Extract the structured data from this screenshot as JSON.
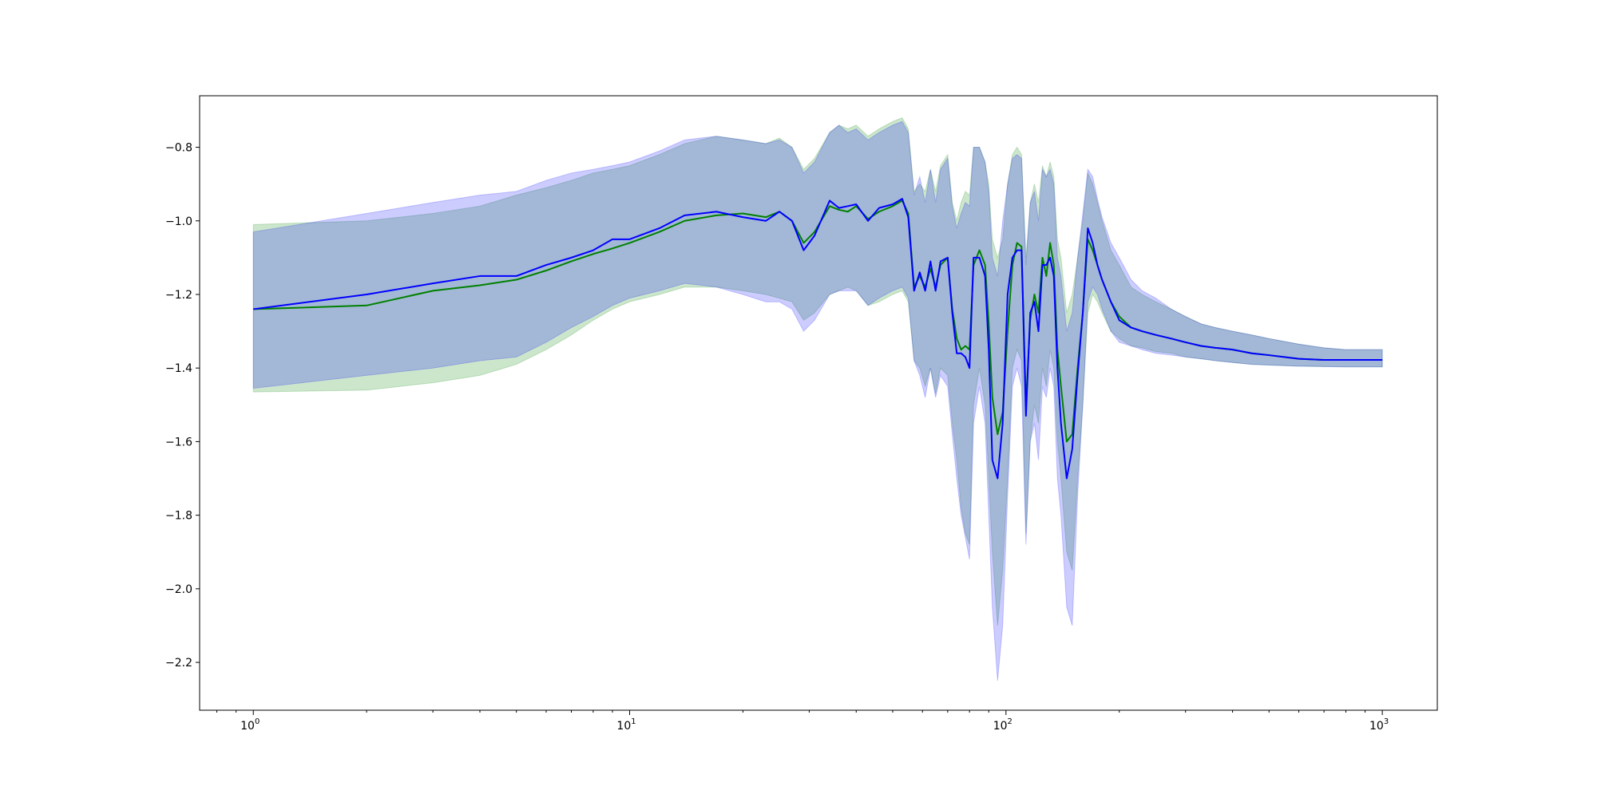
{
  "chart_data": {
    "type": "line",
    "title": "",
    "xlabel": "",
    "ylabel": "",
    "xscale": "log",
    "xlim": [
      0.72,
      1400
    ],
    "ylim": [
      -2.33,
      -0.66
    ],
    "x_ticks": [
      {
        "value": 1,
        "base": "10",
        "exp": "0"
      },
      {
        "value": 10,
        "base": "10",
        "exp": "1"
      },
      {
        "value": 100,
        "base": "10",
        "exp": "2"
      },
      {
        "value": 1000,
        "base": "10",
        "exp": "3"
      }
    ],
    "y_ticks": [
      {
        "value": -0.8,
        "label": "−0.8"
      },
      {
        "value": -1.0,
        "label": "−1.0"
      },
      {
        "value": -1.2,
        "label": "−1.2"
      },
      {
        "value": -1.4,
        "label": "−1.4"
      },
      {
        "value": -1.6,
        "label": "−1.6"
      },
      {
        "value": -1.8,
        "label": "−1.8"
      },
      {
        "value": -2.0,
        "label": "−2.0"
      },
      {
        "value": -2.2,
        "label": "−2.2"
      }
    ],
    "grid": false,
    "legend": "none",
    "series": [
      {
        "color": "#008000",
        "band_color": "#008000",
        "band_opacity": 0.2,
        "x": [
          1,
          2,
          3,
          4,
          5,
          6,
          7,
          8,
          9,
          10,
          12,
          14,
          17,
          20,
          23,
          25,
          27,
          29,
          31,
          34,
          36,
          38,
          40,
          43,
          46,
          50,
          53,
          55,
          57,
          59,
          61,
          63,
          65,
          67,
          70,
          72,
          74,
          76,
          78,
          80,
          82,
          85,
          88,
          90,
          92,
          95,
          98,
          101,
          104,
          107,
          110,
          113,
          116,
          119,
          122,
          125,
          128,
          131,
          134,
          137,
          140,
          145,
          150,
          155,
          160,
          165,
          170,
          175,
          180,
          190,
          200,
          215,
          230,
          250,
          275,
          300,
          330,
          360,
          400,
          450,
          500,
          600,
          700,
          800,
          900,
          1000
        ],
        "y": [
          -1.24,
          -1.23,
          -1.19,
          -1.175,
          -1.16,
          -1.135,
          -1.11,
          -1.09,
          -1.075,
          -1.06,
          -1.03,
          -1.0,
          -0.985,
          -0.98,
          -0.99,
          -0.975,
          -1.0,
          -1.06,
          -1.03,
          -0.96,
          -0.97,
          -0.975,
          -0.96,
          -0.995,
          -0.975,
          -0.96,
          -0.945,
          -0.98,
          -1.18,
          -1.15,
          -1.18,
          -1.13,
          -1.18,
          -1.12,
          -1.1,
          -1.24,
          -1.32,
          -1.35,
          -1.34,
          -1.35,
          -1.12,
          -1.08,
          -1.12,
          -1.28,
          -1.48,
          -1.58,
          -1.52,
          -1.3,
          -1.12,
          -1.06,
          -1.07,
          -1.5,
          -1.27,
          -1.2,
          -1.25,
          -1.1,
          -1.15,
          -1.06,
          -1.12,
          -1.35,
          -1.45,
          -1.6,
          -1.58,
          -1.4,
          -1.25,
          -1.05,
          -1.08,
          -1.12,
          -1.16,
          -1.22,
          -1.26,
          -1.29,
          -1.3,
          -1.31,
          -1.32,
          -1.33,
          -1.34,
          -1.345,
          -1.35,
          -1.36,
          -1.365,
          -1.375,
          -1.378,
          -1.378,
          -1.378,
          -1.378
        ],
        "lower": [
          -1.465,
          -1.46,
          -1.44,
          -1.42,
          -1.39,
          -1.35,
          -1.31,
          -1.27,
          -1.24,
          -1.22,
          -1.2,
          -1.18,
          -1.18,
          -1.19,
          -1.2,
          -1.21,
          -1.22,
          -1.27,
          -1.25,
          -1.2,
          -1.19,
          -1.18,
          -1.19,
          -1.23,
          -1.22,
          -1.2,
          -1.19,
          -1.22,
          -1.38,
          -1.4,
          -1.45,
          -1.4,
          -1.47,
          -1.4,
          -1.42,
          -1.55,
          -1.65,
          -1.78,
          -1.85,
          -1.88,
          -1.5,
          -1.4,
          -1.5,
          -1.7,
          -1.9,
          -2.1,
          -1.95,
          -1.7,
          -1.4,
          -1.35,
          -1.38,
          -1.85,
          -1.6,
          -1.5,
          -1.55,
          -1.4,
          -1.45,
          -1.35,
          -1.4,
          -1.6,
          -1.7,
          -1.9,
          -1.95,
          -1.7,
          -1.5,
          -1.25,
          -1.2,
          -1.22,
          -1.25,
          -1.3,
          -1.32,
          -1.34,
          -1.345,
          -1.355,
          -1.36,
          -1.37,
          -1.375,
          -1.38,
          -1.385,
          -1.39,
          -1.392,
          -1.395,
          -1.396,
          -1.397,
          -1.397,
          -1.397
        ],
        "upper": [
          -1.01,
          -1.0,
          -0.98,
          -0.96,
          -0.93,
          -0.91,
          -0.89,
          -0.87,
          -0.86,
          -0.85,
          -0.82,
          -0.79,
          -0.77,
          -0.78,
          -0.79,
          -0.775,
          -0.8,
          -0.86,
          -0.83,
          -0.76,
          -0.74,
          -0.75,
          -0.74,
          -0.77,
          -0.75,
          -0.73,
          -0.72,
          -0.75,
          -0.92,
          -0.9,
          -0.92,
          -0.86,
          -0.92,
          -0.85,
          -0.82,
          -0.95,
          -1.0,
          -0.95,
          -0.92,
          -0.93,
          -0.8,
          -0.8,
          -0.84,
          -0.9,
          -1.05,
          -1.1,
          -1.05,
          -0.9,
          -0.82,
          -0.8,
          -0.82,
          -1.1,
          -0.95,
          -0.9,
          -0.95,
          -0.85,
          -0.88,
          -0.84,
          -0.88,
          -1.05,
          -1.1,
          -1.25,
          -1.2,
          -1.1,
          -1.0,
          -0.87,
          -0.9,
          -0.95,
          -1.0,
          -1.08,
          -1.12,
          -1.18,
          -1.2,
          -1.22,
          -1.24,
          -1.26,
          -1.28,
          -1.29,
          -1.3,
          -1.31,
          -1.32,
          -1.335,
          -1.345,
          -1.35,
          -1.35,
          -1.35
        ]
      },
      {
        "color": "#0000ff",
        "band_color": "#0000ff",
        "band_opacity": 0.2,
        "x": [
          1,
          2,
          3,
          4,
          5,
          6,
          7,
          8,
          9,
          10,
          12,
          14,
          17,
          20,
          23,
          25,
          27,
          29,
          31,
          34,
          36,
          38,
          40,
          43,
          46,
          50,
          53,
          55,
          57,
          59,
          61,
          63,
          65,
          67,
          70,
          72,
          74,
          76,
          78,
          80,
          82,
          85,
          88,
          90,
          92,
          95,
          98,
          101,
          104,
          107,
          110,
          113,
          116,
          119,
          122,
          125,
          128,
          131,
          134,
          137,
          140,
          145,
          150,
          155,
          160,
          165,
          170,
          175,
          180,
          190,
          200,
          215,
          230,
          250,
          275,
          300,
          330,
          360,
          400,
          450,
          500,
          600,
          700,
          800,
          900,
          1000
        ],
        "y": [
          -1.24,
          -1.2,
          -1.17,
          -1.15,
          -1.15,
          -1.12,
          -1.1,
          -1.08,
          -1.05,
          -1.05,
          -1.02,
          -0.985,
          -0.975,
          -0.99,
          -1.0,
          -0.975,
          -1.0,
          -1.08,
          -1.04,
          -0.945,
          -0.965,
          -0.96,
          -0.955,
          -1.0,
          -0.965,
          -0.955,
          -0.94,
          -0.99,
          -1.19,
          -1.14,
          -1.19,
          -1.11,
          -1.19,
          -1.11,
          -1.1,
          -1.25,
          -1.36,
          -1.36,
          -1.37,
          -1.4,
          -1.1,
          -1.1,
          -1.15,
          -1.35,
          -1.65,
          -1.7,
          -1.55,
          -1.2,
          -1.1,
          -1.08,
          -1.08,
          -1.53,
          -1.25,
          -1.22,
          -1.3,
          -1.12,
          -1.12,
          -1.1,
          -1.15,
          -1.4,
          -1.55,
          -1.7,
          -1.62,
          -1.42,
          -1.25,
          -1.02,
          -1.06,
          -1.12,
          -1.16,
          -1.22,
          -1.27,
          -1.29,
          -1.3,
          -1.31,
          -1.32,
          -1.33,
          -1.34,
          -1.345,
          -1.35,
          -1.36,
          -1.365,
          -1.375,
          -1.378,
          -1.378,
          -1.378,
          -1.378
        ],
        "lower": [
          -1.455,
          -1.42,
          -1.4,
          -1.38,
          -1.37,
          -1.33,
          -1.29,
          -1.26,
          -1.23,
          -1.21,
          -1.19,
          -1.17,
          -1.18,
          -1.2,
          -1.22,
          -1.22,
          -1.24,
          -1.3,
          -1.27,
          -1.2,
          -1.19,
          -1.19,
          -1.19,
          -1.23,
          -1.21,
          -1.19,
          -1.18,
          -1.21,
          -1.38,
          -1.42,
          -1.48,
          -1.4,
          -1.48,
          -1.42,
          -1.45,
          -1.58,
          -1.7,
          -1.8,
          -1.86,
          -1.92,
          -1.55,
          -1.45,
          -1.55,
          -1.8,
          -2.05,
          -2.25,
          -2.1,
          -1.75,
          -1.45,
          -1.4,
          -1.45,
          -1.88,
          -1.6,
          -1.55,
          -1.65,
          -1.45,
          -1.48,
          -1.4,
          -1.45,
          -1.7,
          -1.8,
          -2.05,
          -2.1,
          -1.75,
          -1.5,
          -1.22,
          -1.18,
          -1.2,
          -1.24,
          -1.3,
          -1.33,
          -1.34,
          -1.35,
          -1.36,
          -1.365,
          -1.37,
          -1.375,
          -1.38,
          -1.385,
          -1.39,
          -1.392,
          -1.395,
          -1.396,
          -1.397,
          -1.397,
          -1.397
        ],
        "upper": [
          -1.03,
          -0.98,
          -0.95,
          -0.93,
          -0.92,
          -0.89,
          -0.87,
          -0.86,
          -0.85,
          -0.84,
          -0.81,
          -0.78,
          -0.77,
          -0.78,
          -0.79,
          -0.78,
          -0.8,
          -0.87,
          -0.84,
          -0.76,
          -0.74,
          -0.76,
          -0.75,
          -0.78,
          -0.76,
          -0.74,
          -0.73,
          -0.76,
          -0.93,
          -0.88,
          -0.95,
          -0.86,
          -0.95,
          -0.86,
          -0.83,
          -0.96,
          -1.02,
          -0.98,
          -0.95,
          -0.96,
          -0.8,
          -0.8,
          -0.84,
          -0.92,
          -1.1,
          -1.15,
          -1.0,
          -0.9,
          -0.83,
          -0.82,
          -0.83,
          -1.12,
          -0.95,
          -0.92,
          -1.0,
          -0.86,
          -0.88,
          -0.86,
          -0.9,
          -1.1,
          -1.15,
          -1.3,
          -1.25,
          -1.1,
          -0.98,
          -0.86,
          -0.88,
          -0.94,
          -0.99,
          -1.06,
          -1.1,
          -1.16,
          -1.19,
          -1.21,
          -1.24,
          -1.26,
          -1.28,
          -1.29,
          -1.3,
          -1.31,
          -1.32,
          -1.335,
          -1.345,
          -1.35,
          -1.35,
          -1.35
        ]
      }
    ]
  }
}
